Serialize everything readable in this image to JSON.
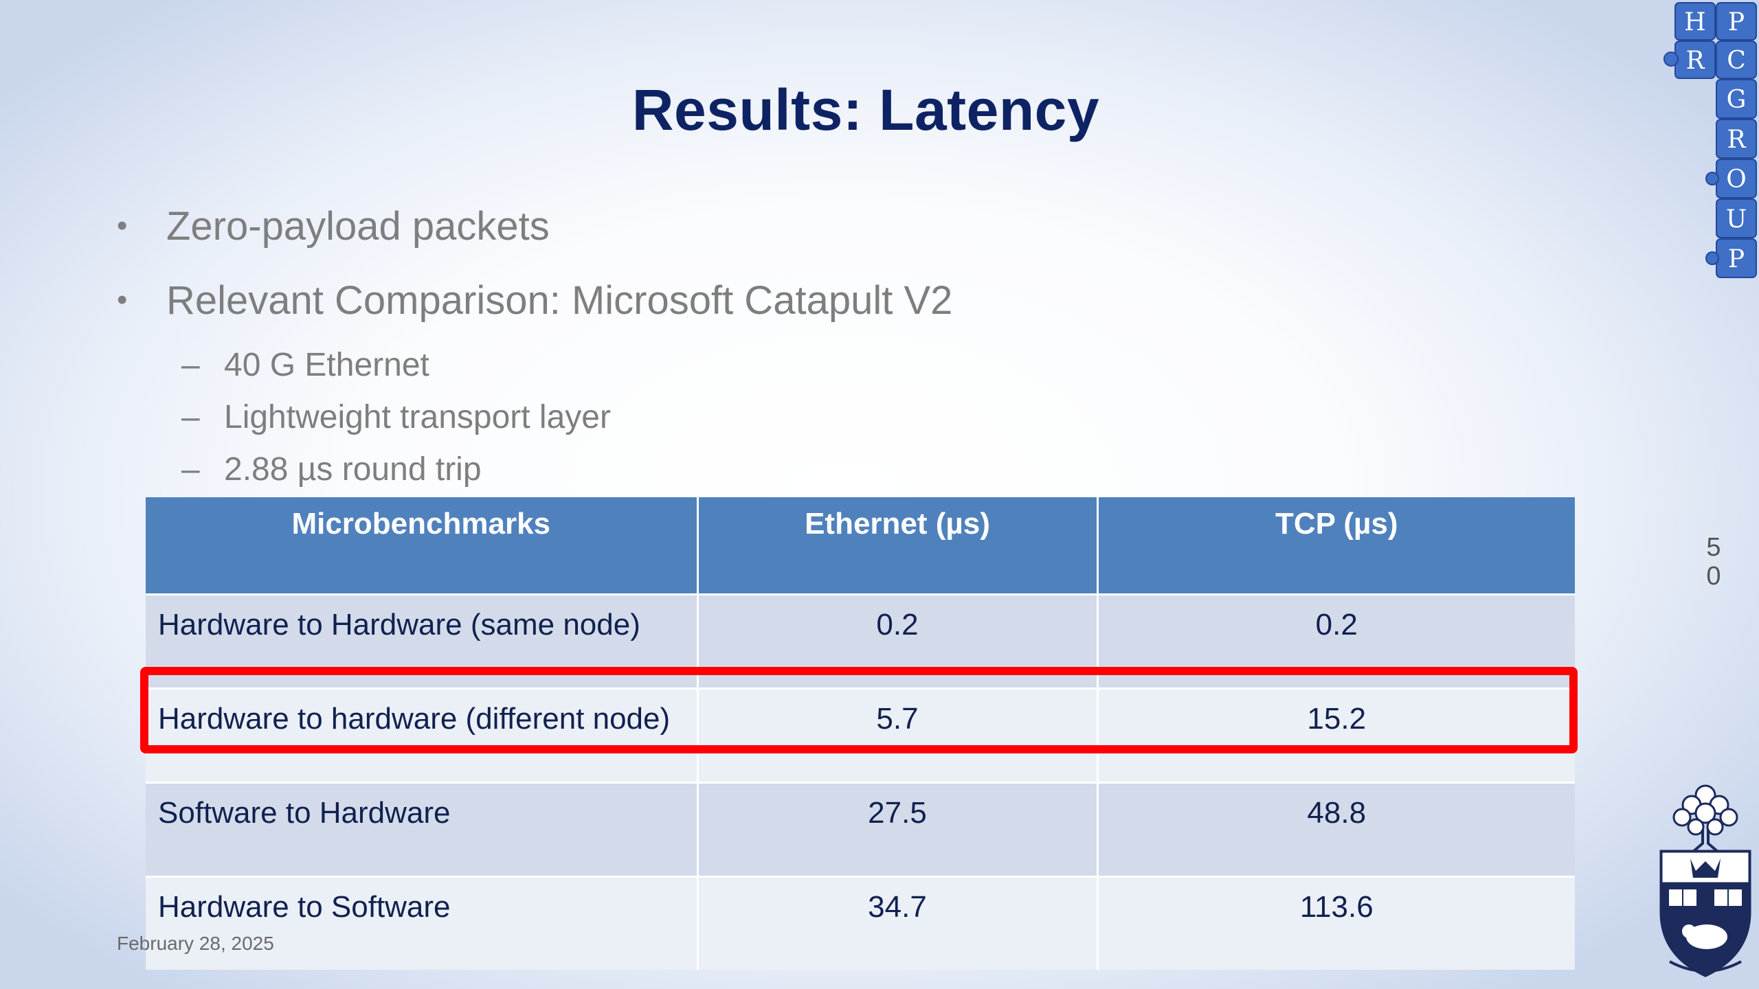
{
  "slide": {
    "title": "Results: Latency",
    "bullets": [
      "Zero-payload packets",
      "Relevant Comparison: Microsoft Catapult V2"
    ],
    "bullet_marker": "•",
    "sub_marker": "–",
    "sub_bullets": [
      "40 G Ethernet",
      "Lightweight transport layer",
      "2.88 µs round trip"
    ],
    "footer_date": "February 28, 2025",
    "page_number": [
      "5",
      "0"
    ]
  },
  "table": {
    "headers": [
      "Microbenchmarks",
      "Ethernet (µs)",
      "TCP (µs)"
    ],
    "rows": [
      [
        "Hardware to Hardware (same node)",
        "0.2",
        "0.2"
      ],
      [
        "Hardware to hardware (different node)",
        "5.7",
        "15.2"
      ],
      [
        "Software to Hardware",
        "27.5",
        "48.8"
      ],
      [
        "Hardware to Software",
        "34.7",
        "113.6"
      ]
    ],
    "highlighted_row": 1,
    "header_color": "#4f81bd",
    "highlight_color": "#ff0000"
  },
  "logo": {
    "letters": [
      "H",
      "P",
      "R",
      "C",
      "G",
      "R",
      "O",
      "U",
      "P"
    ],
    "icon": "hprc-group-puzzle-logo"
  },
  "crest": {
    "icon": "university-crest-icon"
  }
}
